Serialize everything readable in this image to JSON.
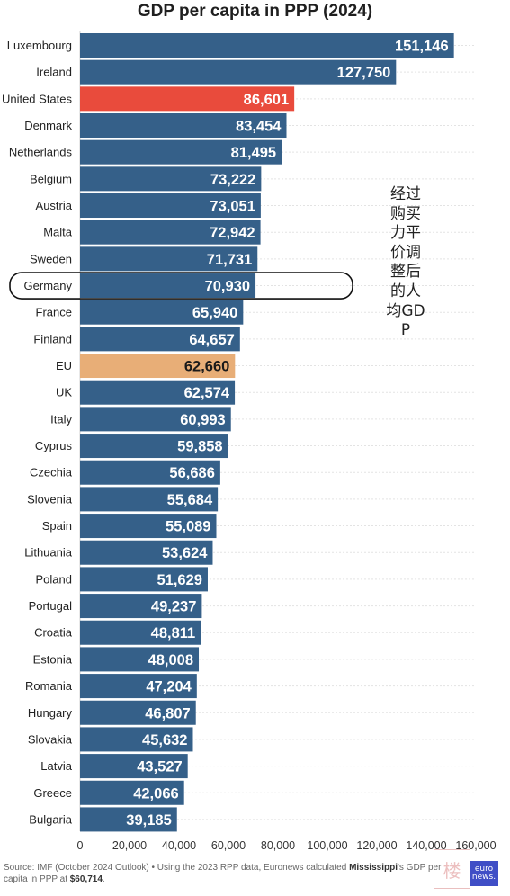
{
  "chart_data": {
    "type": "bar",
    "orientation": "horizontal",
    "title": "GDP per capita in PPP (2024)",
    "categories": [
      "Luxembourg",
      "Ireland",
      "United States",
      "Denmark",
      "Netherlands",
      "Belgium",
      "Austria",
      "Malta",
      "Sweden",
      "Germany",
      "France",
      "Finland",
      "EU",
      "UK",
      "Italy",
      "Cyprus",
      "Czechia",
      "Slovenia",
      "Spain",
      "Lithuania",
      "Poland",
      "Portugal",
      "Croatia",
      "Estonia",
      "Romania",
      "Hungary",
      "Slovakia",
      "Latvia",
      "Greece",
      "Bulgaria"
    ],
    "values": [
      151146,
      127750,
      86601,
      83454,
      81495,
      73222,
      73051,
      72942,
      71731,
      70930,
      65940,
      64657,
      62660,
      62574,
      60993,
      59858,
      56686,
      55684,
      55089,
      53624,
      51629,
      49237,
      48811,
      48008,
      47204,
      46807,
      45632,
      43527,
      42066,
      39185
    ],
    "value_labels": [
      "151,146",
      "127,750",
      "86,601",
      "83,454",
      "81,495",
      "73,222",
      "73,051",
      "72,942",
      "71,731",
      "70,930",
      "65,940",
      "64,657",
      "62,660",
      "62,574",
      "60,993",
      "59,858",
      "56,686",
      "55,684",
      "55,089",
      "53,624",
      "51,629",
      "49,237",
      "48,811",
      "48,008",
      "47,204",
      "46,807",
      "45,632",
      "43,527",
      "42,066",
      "39,185"
    ],
    "xlim": [
      0,
      160000
    ],
    "xticks": [
      "0",
      "20,000",
      "40,000",
      "60,000",
      "80,000",
      "100,000",
      "120,000",
      "140,000",
      "160,000"
    ],
    "grid": true,
    "colors": {
      "default": "#356089",
      "United States": "#e94b3c",
      "EU": "#e8ae77"
    },
    "highlight_outline": "Germany"
  },
  "annotation": "经过购买力平价调整后的人均GDP",
  "source": {
    "prefix": "Source: IMF (October 2024 Outlook) • Using the 2023 RPP data, Euronews calculated ",
    "bold1": "Mississippi",
    "mid": "'s GDP per capita in PPP at ",
    "bold2": "$60,714",
    "suffix": "."
  },
  "watermark": "楼",
  "logo": {
    "line1": "euro",
    "line2": "news."
  }
}
